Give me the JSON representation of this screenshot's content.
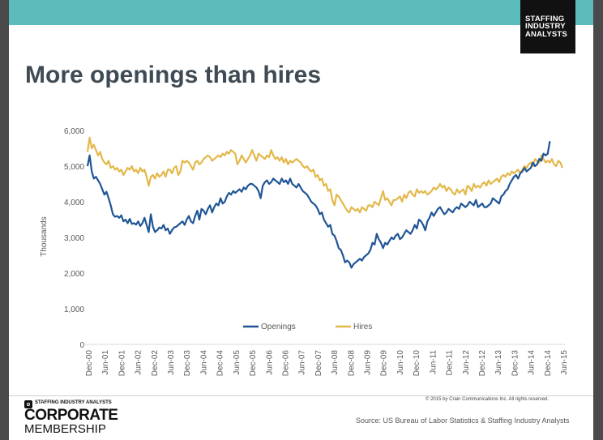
{
  "slide": {
    "title": "More openings than hires",
    "logo_lines": [
      "STAFFING",
      "INDUSTRY",
      "ANALYSTS"
    ],
    "copyright": "© 2015 by Crain Communications Inc. All rights reserved.",
    "source": "Source: US Bureau of Labor Statistics & Staffing Industry Analysts",
    "membership": {
      "org": "STAFFING INDUSTRY ANALYSTS",
      "line1": "CORPORATE",
      "line2": "MEMBERSHIP"
    }
  },
  "colors": {
    "topbar": "#5bbcbb",
    "openings": "#1f5596",
    "hires": "#e3b84a",
    "title": "#3f4b54"
  },
  "chart_data": {
    "type": "line",
    "ylabel": "Thousands",
    "xlabel": "",
    "ylim": [
      0,
      6000
    ],
    "y_ticks": [
      "0",
      "1,000",
      "2,000",
      "3,000",
      "4,000",
      "5,000",
      "6,000"
    ],
    "x_ticks": [
      "Dec-00",
      "Jun-01",
      "Dec-01",
      "Jun-02",
      "Dec-02",
      "Jun-03",
      "Dec-03",
      "Jun-04",
      "Dec-04",
      "Jun-05",
      "Dec-05",
      "Jun-06",
      "Dec-06",
      "Jun-07",
      "Dec-07",
      "Jun-08",
      "Dec-08",
      "Jun-09",
      "Dec-09",
      "Jun-10",
      "Dec-10",
      "Jun-11",
      "Dec-11",
      "Jun-12",
      "Dec-12",
      "Jun-13",
      "Dec-13",
      "Jun-14",
      "Dec-14",
      "Jun-15"
    ],
    "x_start": "Dec-00",
    "x_step": "month",
    "legend_position": "bottom-center",
    "grid": false,
    "series": [
      {
        "name": "Openings",
        "values": [
          5000,
          5300,
          4850,
          4650,
          4700,
          4600,
          4500,
          4350,
          4200,
          4280,
          4100,
          3900,
          3650,
          3580,
          3600,
          3550,
          3620,
          3450,
          3500,
          3400,
          3520,
          3380,
          3400,
          3360,
          3450,
          3320,
          3400,
          3550,
          3350,
          3150,
          3650,
          3300,
          3150,
          3200,
          3280,
          3250,
          3350,
          3200,
          3250,
          3100,
          3200,
          3280,
          3300,
          3350,
          3400,
          3450,
          3350,
          3500,
          3600,
          3450,
          3400,
          3600,
          3750,
          3500,
          3800,
          3750,
          3650,
          3800,
          3900,
          3700,
          3850,
          3950,
          3900,
          4100,
          3950,
          4000,
          4150,
          4250,
          4200,
          4300,
          4250,
          4300,
          4350,
          4280,
          4400,
          4350,
          4450,
          4500,
          4500,
          4450,
          4400,
          4300,
          4100,
          4450,
          4550,
          4600,
          4500,
          4550,
          4650,
          4600,
          4550,
          4500,
          4650,
          4550,
          4600,
          4500,
          4650,
          4500,
          4450,
          4400,
          4500,
          4400,
          4300,
          4250,
          4200,
          4100,
          4000,
          3950,
          3900,
          3800,
          3650,
          3700,
          3500,
          3400,
          3300,
          3350,
          3100,
          3050,
          2900,
          2700,
          2650,
          2500,
          2300,
          2350,
          2300,
          2150,
          2250,
          2300,
          2350,
          2400,
          2350,
          2450,
          2500,
          2550,
          2650,
          2850,
          2800,
          3100,
          2950,
          2850,
          2700,
          2850,
          2800,
          2900,
          3000,
          2950,
          3050,
          3100,
          2950,
          3000,
          3100,
          3200,
          3150,
          3100,
          3200,
          3350,
          3250,
          3500,
          3450,
          3350,
          3200,
          3450,
          3550,
          3700,
          3600,
          3700,
          3800,
          3850,
          3750,
          3650,
          3700,
          3800,
          3750,
          3700,
          3800,
          3850,
          3800,
          3950,
          3900,
          3850,
          3900,
          4000,
          3950,
          3900,
          4050,
          3850,
          3900,
          3950,
          3850,
          3850,
          3900,
          3950,
          4100,
          4050,
          4000,
          3950,
          4150,
          4200,
          4300,
          4350,
          4500,
          4600,
          4700,
          4750,
          4650,
          4800,
          4850,
          4950,
          4850,
          4900,
          4950,
          5100,
          5000,
          5050,
          5200,
          5150,
          5350,
          5300,
          5350,
          5700
        ],
        "color": "#1f5596"
      },
      {
        "name": "Hires",
        "values": [
          5400,
          5800,
          5500,
          5600,
          5450,
          5300,
          5400,
          5200,
          5100,
          5050,
          5150,
          4950,
          5000,
          4900,
          4950,
          4850,
          4900,
          4750,
          4850,
          4950,
          4900,
          5000,
          4850,
          4900,
          4800,
          4950,
          4850,
          4900,
          4700,
          4450,
          4700,
          4750,
          4650,
          4800,
          4700,
          4750,
          4850,
          4700,
          4900,
          4900,
          4800,
          4950,
          5000,
          4750,
          4850,
          5150,
          5100,
          5150,
          5100,
          5000,
          4900,
          5100,
          5150,
          5050,
          5100,
          5200,
          5250,
          5300,
          5250,
          5150,
          5200,
          5250,
          5300,
          5250,
          5350,
          5300,
          5400,
          5350,
          5450,
          5400,
          5350,
          5050,
          5150,
          5300,
          5200,
          5100,
          5200,
          5300,
          5450,
          5300,
          5150,
          5350,
          5300,
          5250,
          5200,
          5300,
          5250,
          5450,
          5300,
          5200,
          5250,
          5150,
          5250,
          5100,
          5200,
          5050,
          5150,
          5100,
          5150,
          5200,
          5150,
          5100,
          5000,
          4950,
          5000,
          4900,
          4850,
          4900,
          4700,
          4750,
          4600,
          4650,
          4450,
          4500,
          4300,
          4350,
          4050,
          3900,
          4200,
          4150,
          4050,
          3950,
          3850,
          3750,
          3700,
          3850,
          3800,
          3750,
          3800,
          3700,
          3850,
          3800,
          3750,
          3900,
          3900,
          3850,
          4000,
          3950,
          3900,
          4100,
          4300,
          4050,
          4100,
          4000,
          3900,
          4050,
          4050,
          4100,
          4150,
          4000,
          4200,
          4100,
          4250,
          4300,
          4200,
          4150,
          4350,
          4250,
          4300,
          4250,
          4300,
          4200,
          4250,
          4300,
          4400,
          4350,
          4400,
          4500,
          4400,
          4450,
          4300,
          4400,
          4350,
          4250,
          4200,
          4350,
          4250,
          4300,
          4350,
          4200,
          4450,
          4400,
          4300,
          4500,
          4400,
          4450,
          4400,
          4500,
          4550,
          4450,
          4600,
          4500,
          4550,
          4600,
          4650,
          4550,
          4700,
          4750,
          4700,
          4800,
          4750,
          4850,
          4800,
          4850,
          4900,
          4800,
          4900,
          5000,
          4950,
          5050,
          5100,
          5000,
          5200,
          5150,
          5100,
          5300,
          5200,
          5100,
          5150,
          5100,
          5200,
          5050,
          5000,
          5150,
          5100,
          4950
        ],
        "color": "#e3b84a"
      }
    ]
  }
}
